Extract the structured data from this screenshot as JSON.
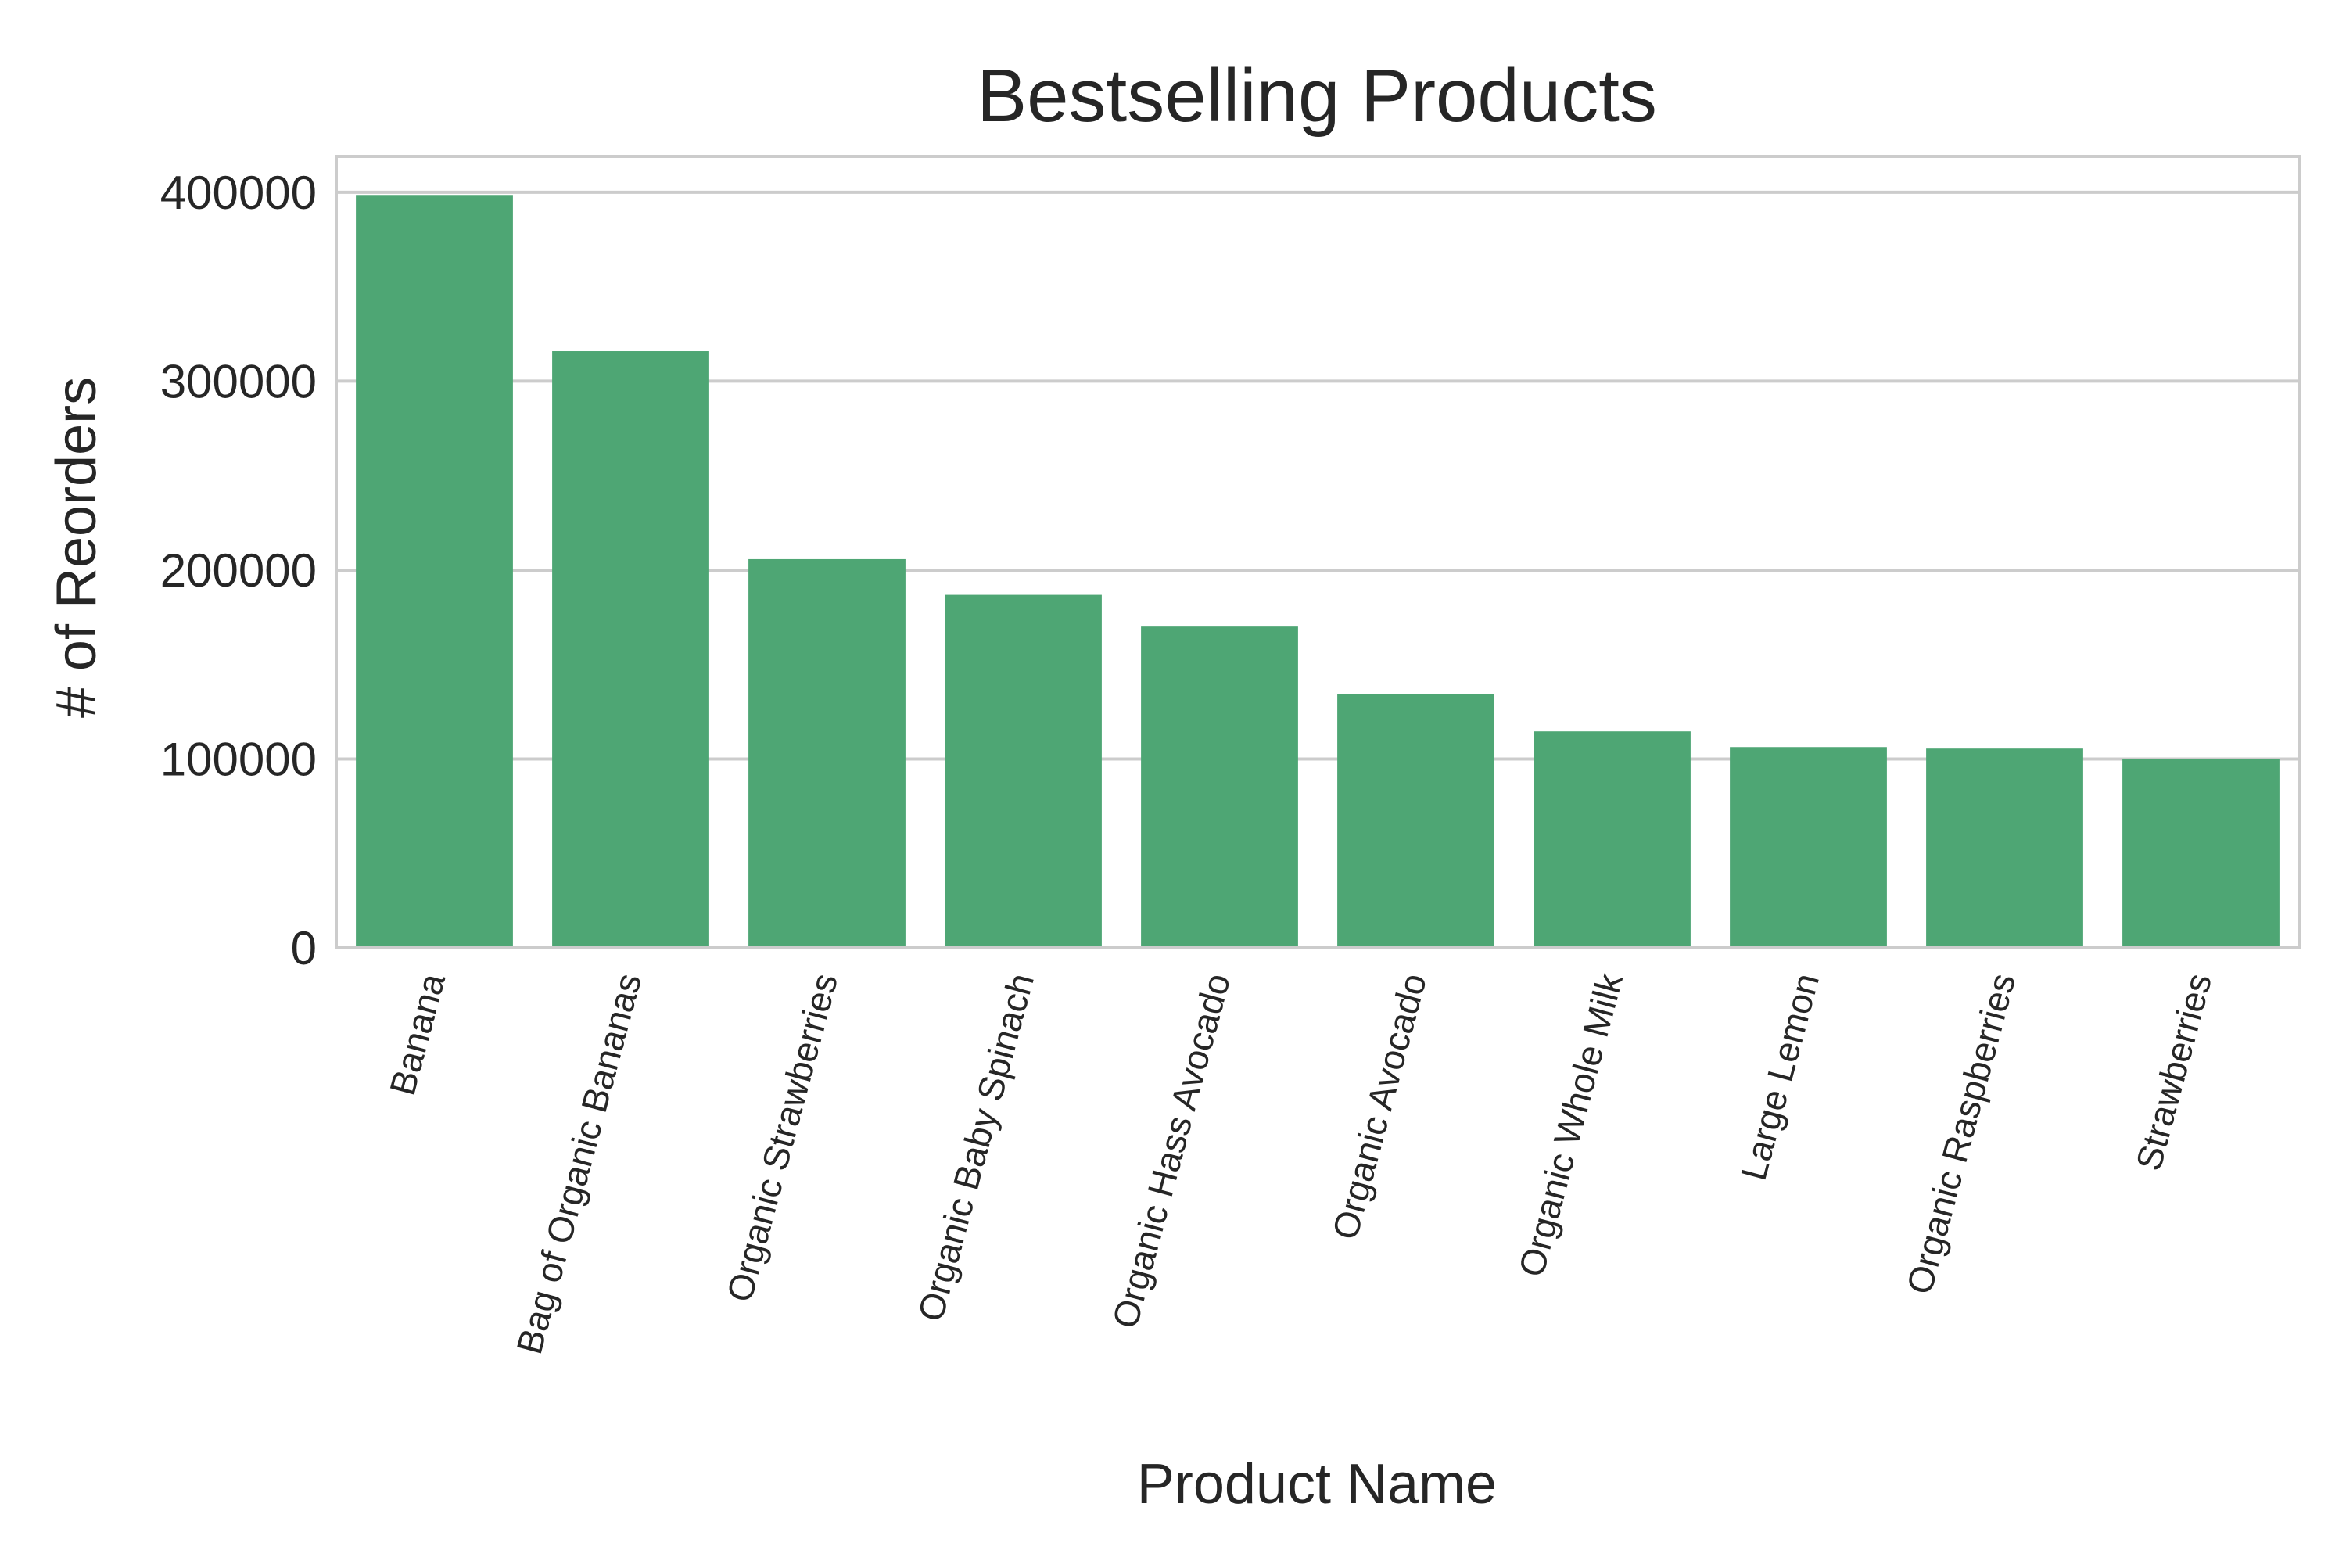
{
  "chart_data": {
    "type": "bar",
    "title": "Bestselling Products",
    "xlabel": "Product Name",
    "ylabel": "# of Reorders",
    "categories": [
      "Banana",
      "Bag of Organic Bananas",
      "Organic Strawberries",
      "Organic Baby Spinach",
      "Organic Hass Avocado",
      "Organic Avocado",
      "Organic Whole Milk",
      "Large Lemon",
      "Organic Raspberries",
      "Strawberries"
    ],
    "values": [
      398600,
      315900,
      205800,
      186900,
      170100,
      134300,
      114600,
      106300,
      105500,
      99800
    ],
    "yticks": [
      0,
      100000,
      200000,
      300000,
      400000
    ],
    "ylim": [
      0,
      419000
    ],
    "grid": "horizontal",
    "bar_color": "#4ea674",
    "grid_color": "#cccccc",
    "frame_color": "#cccccc"
  }
}
